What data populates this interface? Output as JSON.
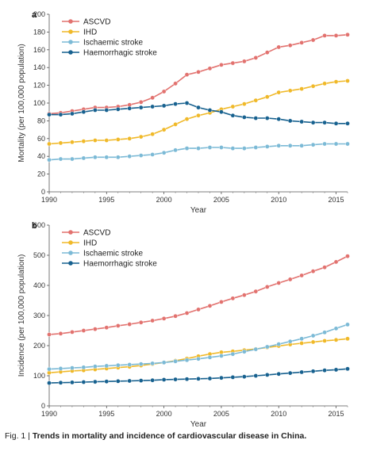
{
  "caption": {
    "prefix": "Fig. 1 | ",
    "text": "Trends in mortality and incidence of cardiovascular disease in China."
  },
  "chart_data": [
    {
      "type": "line",
      "panel": "a",
      "xlabel": "Year",
      "ylabel": "Mortality (per 100,000 population)",
      "xlim": [
        1990,
        2016
      ],
      "ylim": [
        0,
        200
      ],
      "xticks": [
        1990,
        1995,
        2000,
        2005,
        2010,
        2015
      ],
      "yticks": [
        0,
        20,
        40,
        60,
        80,
        100,
        120,
        140,
        160,
        180,
        200
      ],
      "grid": false,
      "legend_position": "top-left",
      "x": [
        1990,
        1991,
        1992,
        1993,
        1994,
        1995,
        1996,
        1997,
        1998,
        1999,
        2000,
        2001,
        2002,
        2003,
        2004,
        2005,
        2006,
        2007,
        2008,
        2009,
        2010,
        2011,
        2012,
        2013,
        2014,
        2015,
        2016
      ],
      "series": [
        {
          "name": "ASCVD",
          "color": "#e2726f",
          "values": [
            88,
            89,
            91,
            93,
            95,
            95,
            96,
            98,
            101,
            106,
            113,
            122,
            132,
            135,
            139,
            143,
            145,
            147,
            151,
            157,
            163,
            165,
            168,
            171,
            176,
            176,
            177
          ]
        },
        {
          "name": "IHD",
          "color": "#f0b929",
          "values": [
            54,
            55,
            56,
            57,
            58,
            58,
            59,
            60,
            62,
            65,
            70,
            76,
            82,
            86,
            89,
            93,
            96,
            99,
            103,
            107,
            112,
            114,
            116,
            119,
            122,
            124,
            125
          ]
        },
        {
          "name": "Ischaemic stroke",
          "color": "#7cbad6",
          "values": [
            36,
            37,
            37,
            38,
            39,
            39,
            39,
            40,
            41,
            42,
            44,
            47,
            49,
            49,
            50,
            50,
            49,
            49,
            50,
            51,
            52,
            52,
            52,
            53,
            54,
            54,
            54
          ]
        },
        {
          "name": "Haemorrhagic stroke",
          "color": "#17618f",
          "values": [
            87,
            87,
            88,
            90,
            92,
            92,
            93,
            94,
            95,
            96,
            97,
            99,
            100,
            95,
            92,
            90,
            86,
            84,
            83,
            83,
            82,
            80,
            79,
            78,
            78,
            77,
            77
          ]
        }
      ]
    },
    {
      "type": "line",
      "panel": "b",
      "xlabel": "Year",
      "ylabel": "Incidence (per 100,000 population)",
      "xlim": [
        1990,
        2016
      ],
      "ylim": [
        0,
        600
      ],
      "xticks": [
        1990,
        1995,
        2000,
        2005,
        2010,
        2015
      ],
      "yticks": [
        0,
        100,
        200,
        300,
        400,
        500,
        600
      ],
      "grid": false,
      "legend_position": "top-left",
      "x": [
        1990,
        1991,
        1992,
        1993,
        1994,
        1995,
        1996,
        1997,
        1998,
        1999,
        2000,
        2001,
        2002,
        2003,
        2004,
        2005,
        2006,
        2007,
        2008,
        2009,
        2010,
        2011,
        2012,
        2013,
        2014,
        2015,
        2016
      ],
      "series": [
        {
          "name": "ASCVD",
          "color": "#e2726f",
          "values": [
            237,
            240,
            245,
            250,
            255,
            260,
            266,
            271,
            277,
            283,
            290,
            298,
            308,
            320,
            332,
            345,
            357,
            368,
            380,
            395,
            408,
            420,
            433,
            447,
            460,
            478,
            497
          ]
        },
        {
          "name": "IHD",
          "color": "#f0b929",
          "values": [
            110,
            113,
            116,
            118,
            121,
            124,
            127,
            130,
            134,
            139,
            144,
            150,
            157,
            165,
            172,
            178,
            181,
            185,
            189,
            194,
            199,
            204,
            208,
            212,
            216,
            219,
            223
          ]
        },
        {
          "name": "Ischaemic stroke",
          "color": "#7cbad6",
          "values": [
            122,
            124,
            126,
            128,
            131,
            133,
            135,
            137,
            139,
            141,
            144,
            148,
            152,
            156,
            161,
            166,
            172,
            180,
            188,
            196,
            205,
            214,
            223,
            233,
            244,
            257,
            270
          ]
        },
        {
          "name": "Haemorrhagic stroke",
          "color": "#17618f",
          "values": [
            76,
            77,
            78,
            79,
            80,
            81,
            82,
            83,
            84,
            85,
            87,
            88,
            89,
            90,
            91,
            93,
            95,
            97,
            100,
            103,
            106,
            109,
            112,
            115,
            118,
            120,
            123
          ]
        }
      ]
    }
  ]
}
